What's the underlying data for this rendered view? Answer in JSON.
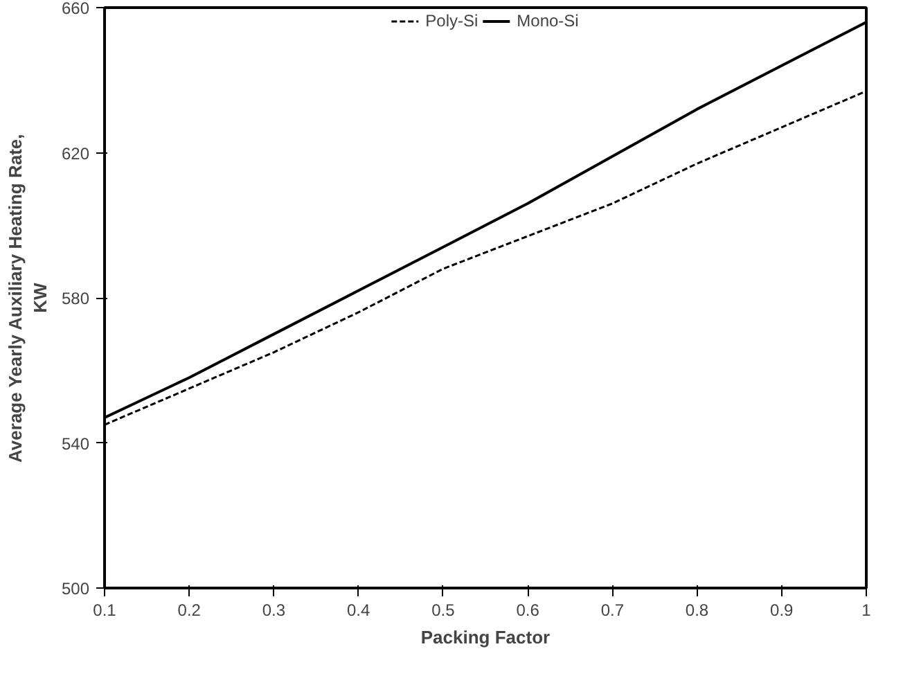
{
  "chart_data": {
    "type": "line",
    "xlabel": "Packing Factor",
    "ylabel": "Average Yearly Auxiliary Heating Rate,\nKW",
    "x": [
      0.1,
      0.2,
      0.3,
      0.4,
      0.5,
      0.6,
      0.7,
      0.8,
      0.9,
      1
    ],
    "series": [
      {
        "name": "Poly-Si",
        "color": "#000000",
        "line_style": "dashed",
        "values": [
          545,
          555,
          565,
          576,
          588,
          597,
          606,
          617,
          627,
          637
        ]
      },
      {
        "name": "Mono-Si",
        "color": "#000000",
        "line_style": "solid",
        "values": [
          547,
          558,
          570,
          582,
          594,
          606,
          619,
          632,
          644,
          656
        ]
      }
    ],
    "xlim": [
      0.1,
      1
    ],
    "xticks": [
      0.1,
      0.2,
      0.3,
      0.4,
      0.5,
      0.6,
      0.7,
      0.8,
      0.9,
      {
        "value": 1,
        "label": "1"
      }
    ],
    "ylim": [
      500,
      660
    ],
    "yticks": [
      500,
      540,
      580,
      620,
      660
    ],
    "grid": false,
    "legend": "top",
    "marker": "none"
  }
}
